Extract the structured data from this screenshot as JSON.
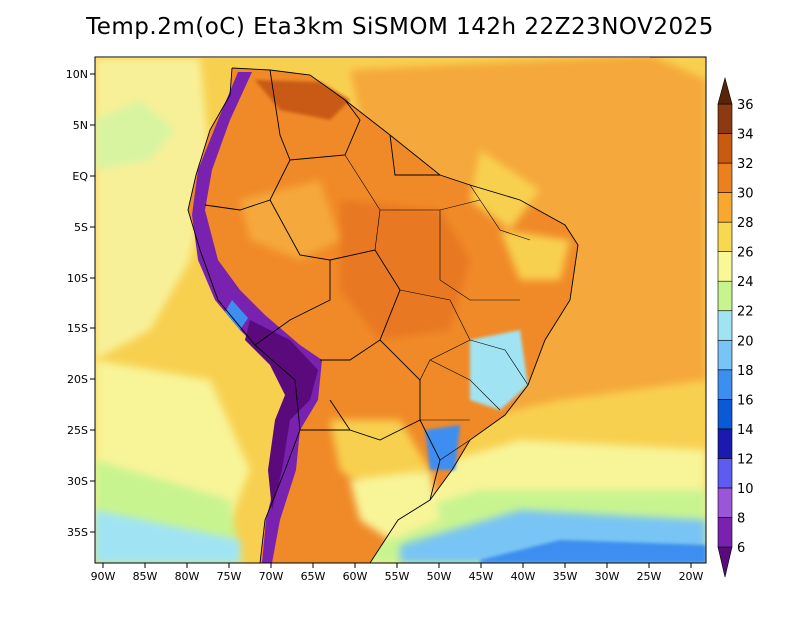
{
  "title": "Temp.2m(oC) Eta3km SiSMOM 142h 22Z23NOV2025",
  "map": {
    "lat_labels": [
      "10N",
      "5N",
      "EQ",
      "5S",
      "10S",
      "15S",
      "20S",
      "25S",
      "30S",
      "35S"
    ],
    "lon_labels": [
      "90W",
      "85W",
      "80W",
      "75W",
      "70W",
      "65W",
      "60W",
      "55W",
      "50W",
      "45W",
      "40W",
      "35W",
      "30W",
      "25W",
      "20W"
    ]
  },
  "colorbar": {
    "unit": "oC",
    "labels": [
      "6",
      "8",
      "10",
      "12",
      "14",
      "16",
      "18",
      "20",
      "22",
      "24",
      "26",
      "28",
      "30",
      "32",
      "34",
      "36"
    ],
    "colors": [
      "#5a0a7a",
      "#7a22b0",
      "#9a55d8",
      "#5c5cf0",
      "#1a1ab0",
      "#0a5ad8",
      "#3c8ef0",
      "#78c4f4",
      "#a0e4f4",
      "#c8f490",
      "#f8f898",
      "#f8d850",
      "#f8a830",
      "#ec8020",
      "#c85a12",
      "#8c3a12",
      "#5a2408"
    ]
  },
  "colors": {
    "ocean_warm": "#f5a83a",
    "ocean_mild": "#f8d050",
    "ocean_cool": "#f8f890",
    "land_hot": "#f08a28",
    "land_very_hot": "#c85a18",
    "highland_cold": "#5a1a8a"
  }
}
